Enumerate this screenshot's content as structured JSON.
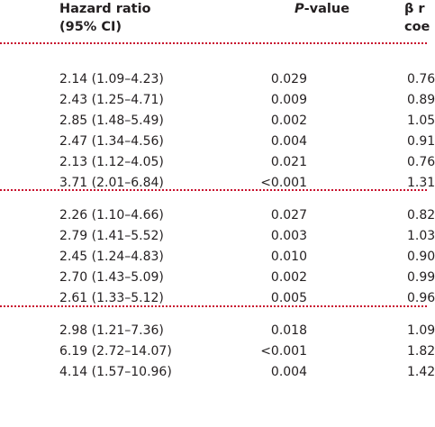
{
  "header": {
    "hazard_line1": "Hazard ratio",
    "hazard_line2": "(95% CI)",
    "pvalue_italic": "P",
    "pvalue_rest": "-value",
    "beta_line1": "β r",
    "beta_line2": "coe"
  },
  "groups": [
    {
      "rows": [
        {
          "hr": "2.14 (1.09–4.23)",
          "p": "0.029",
          "b": "0.76"
        },
        {
          "hr": "2.43 (1.25–4.71)",
          "p": "0.009",
          "b": "0.89"
        },
        {
          "hr": "2.85 (1.48–5.49)",
          "p": "0.002",
          "b": "1.05"
        },
        {
          "hr": "2.47 (1.34–4.56)",
          "p": "0.004",
          "b": "0.91"
        },
        {
          "hr": "2.13 (1.12–4.05)",
          "p": "0.021",
          "b": "0.76"
        },
        {
          "hr": "3.71 (2.01–6.84)",
          "p": "<0.001",
          "b": "1.31"
        }
      ]
    },
    {
      "rows": [
        {
          "hr": "2.26 (1.10–4.66)",
          "p": "0.027",
          "b": "0.82"
        },
        {
          "hr": "2.79 (1.41–5.52)",
          "p": "0.003",
          "b": "1.03"
        },
        {
          "hr": "2.45 (1.24–4.83)",
          "p": "0.010",
          "b": "0.90"
        },
        {
          "hr": "2.70 (1.43–5.09)",
          "p": "0.002",
          "b": "0.99"
        },
        {
          "hr": "2.61 (1.33–5.12)",
          "p": "0.005",
          "b": "0.96"
        }
      ]
    },
    {
      "rows": [
        {
          "hr": "2.98 (1.21–7.36)",
          "p": "0.018",
          "b": "1.09"
        },
        {
          "hr": "6.19 (2.72–14.07)",
          "p": "<0.001",
          "b": "1.82"
        },
        {
          "hr": "4.14 (1.57–10.96)",
          "p": "0.004",
          "b": "1.42"
        }
      ]
    }
  ]
}
